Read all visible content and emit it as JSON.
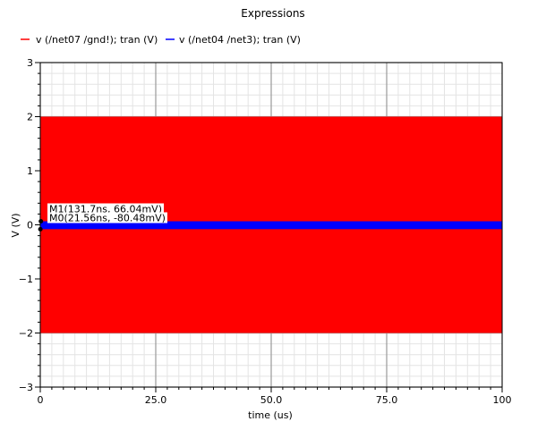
{
  "chart_data": {
    "type": "line",
    "title": "Expressions",
    "xlabel": "time (us)",
    "ylabel": "V (V)",
    "xlim": [
      0,
      100
    ],
    "ylim": [
      -3,
      3
    ],
    "x_ticks": [
      0,
      25,
      50,
      75,
      100
    ],
    "x_tick_labels": [
      "0",
      "25.0",
      "50.0",
      "75.0",
      "100"
    ],
    "y_ticks": [
      -3,
      -2,
      -1,
      0,
      1,
      2,
      3
    ],
    "y_tick_labels": [
      "−3",
      "−2",
      "−1",
      "0",
      "1",
      "2",
      "3"
    ],
    "grid": true,
    "legend_position": "top-left",
    "series": [
      {
        "name": "v (/net07 /gnd!); tran (V)",
        "color": "#ff0000",
        "style": "dense oscillation",
        "x_range": [
          0,
          100
        ],
        "min": -2,
        "max": 2
      },
      {
        "name": "v (/net04 /net3); tran (V)",
        "color": "#0000ff",
        "style": "dense oscillation",
        "x_range": [
          0,
          100
        ],
        "min": -0.08,
        "max": 0.066
      }
    ],
    "markers": [
      {
        "label": "M1(131.7ns, 66.04mV)",
        "x": 0.1317,
        "y": 0.06604
      },
      {
        "label": "M0(21.56ns, -80.48mV)",
        "x": 0.02156,
        "y": -0.08048
      }
    ]
  }
}
